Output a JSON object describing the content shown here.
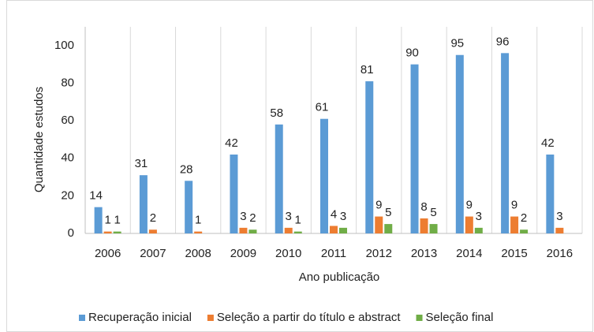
{
  "chart_data": {
    "type": "bar",
    "x_label": "Ano publicação",
    "y_label": "Quantidade estudos",
    "categories": [
      "2006",
      "2007",
      "2008",
      "2009",
      "2010",
      "2011",
      "2012",
      "2013",
      "2014",
      "2015",
      "2016"
    ],
    "series": [
      {
        "name": "Recuperação inicial",
        "color": "#5b9bd5",
        "values": [
          14,
          31,
          28,
          42,
          58,
          61,
          81,
          90,
          95,
          96,
          42
        ]
      },
      {
        "name": "Seleção a partir do título e abstract",
        "color": "#ed7d31",
        "values": [
          1,
          2,
          1,
          3,
          3,
          4,
          9,
          8,
          9,
          9,
          3
        ]
      },
      {
        "name": "Seleção final",
        "color": "#70ad47",
        "values": [
          1,
          null,
          null,
          2,
          1,
          3,
          5,
          5,
          3,
          2,
          null
        ]
      }
    ],
    "ylim": [
      0,
      110
    ],
    "yticks": [
      0,
      20,
      40,
      60,
      80,
      100
    ],
    "grid": true,
    "legend": "bottom"
  }
}
